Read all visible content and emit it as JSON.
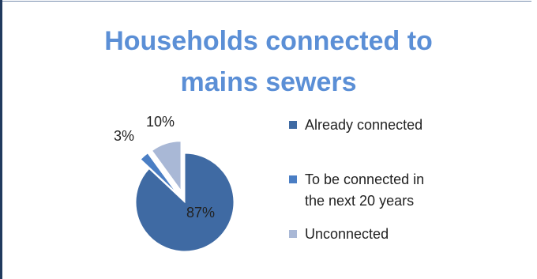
{
  "chart_data": {
    "type": "pie",
    "title": "Households connected to mains sewers",
    "title_lines": [
      "Households connected to",
      "mains sewers"
    ],
    "categories": [
      "Already connected",
      "To be connected in the next 20 years",
      "Unconnected"
    ],
    "values": [
      87,
      3,
      10
    ],
    "data_labels": [
      "87%",
      "3%",
      "10%"
    ],
    "legend_lines": [
      [
        "Already connected"
      ],
      [
        "To be connected in",
        "the next 20 years"
      ],
      [
        "Unconnected"
      ]
    ],
    "colors": [
      "#3f6aa3",
      "#4a7ec4",
      "#a9b8d6"
    ],
    "exploded": [
      false,
      true,
      true
    ],
    "legend_position": "right"
  },
  "title_color": "#5b8fd6"
}
